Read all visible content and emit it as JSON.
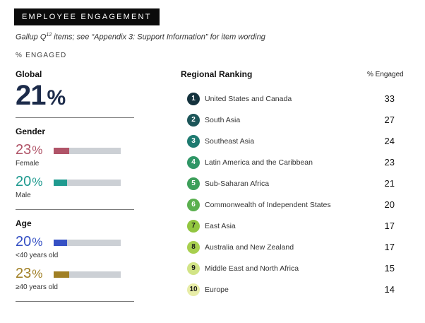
{
  "header": {
    "title": "EMPLOYEE ENGAGEMENT",
    "subtitle_pre": "Gallup Q",
    "subtitle_sup": "12",
    "subtitle_post": " items; see “Appendix 3: Support Information” for item wording",
    "unit_label": "% ENGAGED"
  },
  "global": {
    "title": "Global",
    "value": "21",
    "unit": "%"
  },
  "gender": {
    "title": "Gender",
    "items": [
      {
        "label": "Female",
        "value": "23",
        "unit": "%",
        "share": 0.23,
        "color": "#b05468"
      },
      {
        "label": "Male",
        "value": "20",
        "unit": "%",
        "share": 0.2,
        "color": "#1f9a8f"
      }
    ]
  },
  "age": {
    "title": "Age",
    "items": [
      {
        "label": "<40 years old",
        "value": "20",
        "unit": "%",
        "share": 0.2,
        "color": "#3550c4"
      },
      {
        "label": "≥40 years old",
        "value": "23",
        "unit": "%",
        "share": 0.23,
        "color": "#a07f24"
      }
    ]
  },
  "chart_data": {
    "type": "table",
    "title": "Regional Ranking",
    "value_header": "% Engaged",
    "rows": [
      {
        "rank": "1",
        "region": "United States and Canada",
        "value": 33,
        "color": "#14323d",
        "text_color": "#ffffff"
      },
      {
        "rank": "2",
        "region": "South Asia",
        "value": 27,
        "color": "#1c5559",
        "text_color": "#ffffff"
      },
      {
        "rank": "3",
        "region": "Southeast Asia",
        "value": 24,
        "color": "#1e7a70",
        "text_color": "#ffffff"
      },
      {
        "rank": "4",
        "region": "Latin America and the Caribbean",
        "value": 23,
        "color": "#2f9666",
        "text_color": "#ffffff"
      },
      {
        "rank": "5",
        "region": "Sub-Saharan Africa",
        "value": 21,
        "color": "#3d9f5a",
        "text_color": "#ffffff"
      },
      {
        "rank": "6",
        "region": "Commonwealth of Independent States",
        "value": 20,
        "color": "#5bb04f",
        "text_color": "#ffffff"
      },
      {
        "rank": "7",
        "region": "East Asia",
        "value": 17,
        "color": "#92c640",
        "text_color": "#1a1a1a"
      },
      {
        "rank": "8",
        "region": "Australia and New Zealand",
        "value": 17,
        "color": "#a8cf4e",
        "text_color": "#1a1a1a"
      },
      {
        "rank": "9",
        "region": "Middle East and North Africa",
        "value": 15,
        "color": "#d2e486",
        "text_color": "#1a1a1a"
      },
      {
        "rank": "10",
        "region": "Europe",
        "value": 14,
        "color": "#e8eda7",
        "text_color": "#1a1a1a"
      }
    ]
  }
}
